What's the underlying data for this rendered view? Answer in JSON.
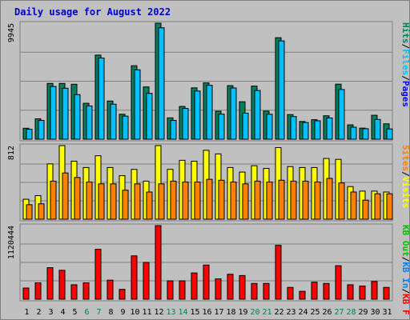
{
  "chart_data": {
    "type": "bar",
    "title": "Daily usage for August 2022",
    "categories": [
      "1",
      "2",
      "3",
      "4",
      "5",
      "6",
      "7",
      "8",
      "9",
      "10",
      "11",
      "12",
      "13",
      "14",
      "15",
      "16",
      "17",
      "18",
      "19",
      "20",
      "21",
      "22",
      "23",
      "24",
      "25",
      "26",
      "27",
      "28",
      "29",
      "30",
      "31"
    ],
    "weekend_days": [
      "6",
      "7",
      "13",
      "14",
      "20",
      "21",
      "27",
      "28"
    ],
    "panels": [
      {
        "name": "hits-files-pages",
        "ymax_label": "9945",
        "ymax": 9945,
        "legend": [
          "Pages",
          "/",
          "Files",
          "/",
          "Hits"
        ],
        "series": [
          {
            "name": "Hits",
            "color": "#00805c",
            "values": [
              940,
              1750,
              4780,
              4780,
              4710,
              3080,
              7210,
              3270,
              2140,
              6300,
              4480,
              9945,
              1830,
              2810,
              4400,
              4830,
              2400,
              4590,
              3210,
              4550,
              2410,
              8700,
              2110,
              1520,
              1670,
              2010,
              4720,
              1230,
              950,
              2050,
              1320
            ]
          },
          {
            "name": "Files",
            "color": "#00c0ff",
            "values": [
              850,
              1610,
              4520,
              4370,
              3820,
              2850,
              6960,
              3000,
              1980,
              5950,
              3930,
              9550,
              1610,
              2640,
              4130,
              4620,
              2150,
              4390,
              2230,
              4180,
              2140,
              8430,
              1940,
              1430,
              1580,
              1820,
              4260,
              1030,
              900,
              1690,
              880
            ]
          },
          {
            "name": "Pages",
            "color": "#0000ff",
            "values": [
              0,
              0,
              0,
              0,
              0,
              0,
              0,
              0,
              0,
              0,
              0,
              0,
              0,
              0,
              0,
              0,
              0,
              0,
              0,
              0,
              0,
              0,
              0,
              0,
              0,
              0,
              0,
              0,
              0,
              0,
              0
            ]
          }
        ]
      },
      {
        "name": "visits-sites",
        "ymax_label": "812",
        "ymax": 812,
        "legend": [
          "Visits",
          "/",
          "Sites"
        ],
        "series": [
          {
            "name": "Visits",
            "color": "#ffff00",
            "values": [
              220,
              260,
              610,
              812,
              640,
              570,
              700,
              570,
              480,
              550,
              420,
              812,
              550,
              650,
              640,
              760,
              720,
              570,
              520,
              590,
              560,
              790,
              580,
              570,
              570,
              670,
              660,
              360,
              310,
              310,
              300
            ]
          },
          {
            "name": "Sites",
            "color": "#ff8000",
            "values": [
              160,
              170,
              420,
              510,
              460,
              410,
              390,
              390,
              320,
              390,
              300,
              390,
              420,
              410,
              410,
              440,
              430,
              410,
              390,
              420,
              410,
              430,
              420,
              420,
              410,
              450,
              400,
              300,
              210,
              280,
              280
            ]
          }
        ]
      },
      {
        "name": "kbytes",
        "ymax_label": "1120444",
        "ymax": 1120444,
        "legend": [
          "KB F",
          "/",
          "KB In",
          "/",
          "KB Out"
        ],
        "series": [
          {
            "name": "KB F",
            "color": "#ff0000",
            "values": [
              170000,
              250000,
              480000,
              440000,
              220000,
              250000,
              760000,
              290000,
              150000,
              660000,
              560000,
              1120444,
              280000,
              280000,
              400000,
              520000,
              310000,
              380000,
              360000,
              240000,
              240000,
              820000,
              180000,
              120000,
              260000,
              240000,
              510000,
              220000,
              200000,
              270000,
              180000
            ]
          },
          {
            "name": "KB In",
            "color": "#0080ff",
            "values": [
              0,
              0,
              0,
              0,
              0,
              0,
              0,
              0,
              0,
              0,
              0,
              0,
              0,
              0,
              0,
              0,
              0,
              0,
              0,
              0,
              0,
              0,
              0,
              0,
              0,
              0,
              0,
              0,
              0,
              0,
              0
            ]
          },
          {
            "name": "KB Out",
            "color": "#00c000",
            "values": [
              0,
              0,
              0,
              0,
              0,
              0,
              0,
              0,
              0,
              0,
              0,
              0,
              0,
              0,
              0,
              0,
              0,
              0,
              0,
              0,
              0,
              0,
              0,
              0,
              0,
              0,
              0,
              0,
              0,
              0,
              0
            ]
          }
        ]
      }
    ]
  },
  "colors": {
    "title": "#0000cc",
    "weekday_label": "#000000",
    "weekend_label": "#00805c",
    "separator": "#808080"
  }
}
